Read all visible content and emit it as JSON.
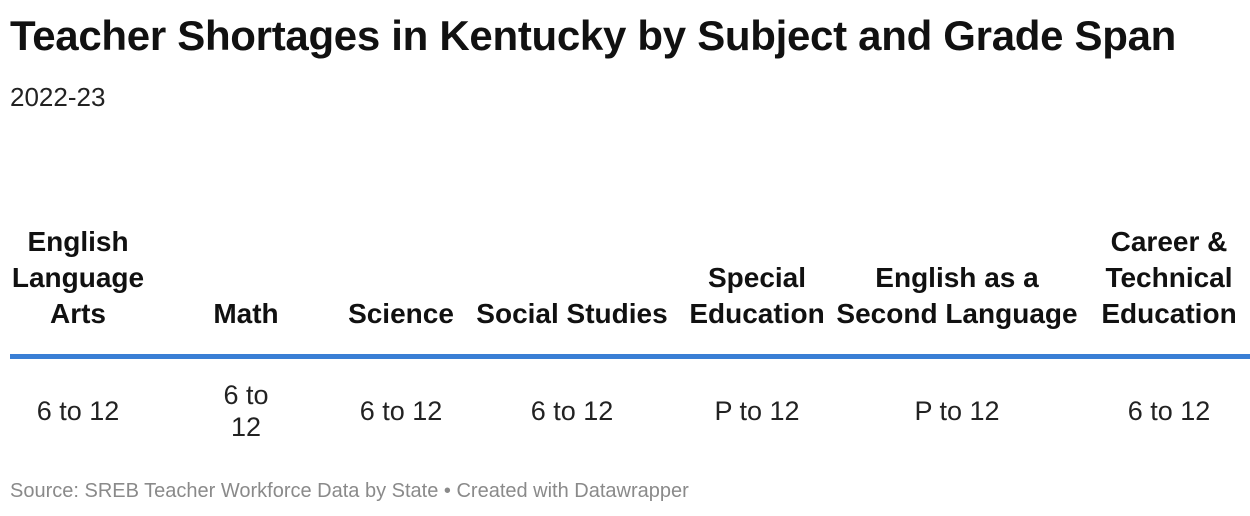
{
  "title": "Teacher Shortages in Kentucky by Subject and Grade Span",
  "subtitle": "2022-23",
  "chart_data": {
    "type": "table",
    "columns": [
      "English Language Arts",
      "Math",
      "Science",
      "Social Studies",
      "Special Education",
      "English as a Second Language",
      "Career & Technical Education"
    ],
    "rows": [
      [
        "6 to 12",
        "6 to 12",
        "6 to 12",
        "6 to 12",
        "P to 12",
        "P to 12",
        "6 to 12"
      ]
    ]
  },
  "colors": {
    "header_rule": "#3a7fd5",
    "footer_text": "#8a8a8a"
  },
  "footer": {
    "text": "Source: SREB Teacher Workforce Data by State • Created with Datawrapper"
  }
}
